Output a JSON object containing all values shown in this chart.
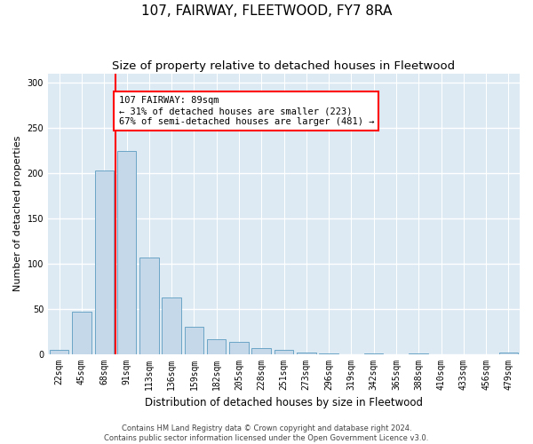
{
  "title": "107, FAIRWAY, FLEETWOOD, FY7 8RA",
  "subtitle": "Size of property relative to detached houses in Fleetwood",
  "xlabel": "Distribution of detached houses by size in Fleetwood",
  "ylabel": "Number of detached properties",
  "bar_labels": [
    "22sqm",
    "45sqm",
    "68sqm",
    "91sqm",
    "113sqm",
    "136sqm",
    "159sqm",
    "182sqm",
    "205sqm",
    "228sqm",
    "251sqm",
    "273sqm",
    "296sqm",
    "319sqm",
    "342sqm",
    "365sqm",
    "388sqm",
    "410sqm",
    "433sqm",
    "456sqm",
    "479sqm"
  ],
  "bar_values": [
    4,
    47,
    203,
    225,
    107,
    62,
    30,
    16,
    13,
    6,
    4,
    2,
    1,
    0,
    1,
    0,
    1,
    0,
    0,
    0,
    2
  ],
  "bar_color": "#c5d8ea",
  "bar_edge_color": "#5a9bbf",
  "vline_bar_index": 2.5,
  "annotation_text": "107 FAIRWAY: 89sqm\n← 31% of detached houses are smaller (223)\n67% of semi-detached houses are larger (481) →",
  "annotation_box_color": "white",
  "annotation_box_edge_color": "red",
  "vline_color": "red",
  "ylim": [
    0,
    310
  ],
  "yticks": [
    0,
    50,
    100,
    150,
    200,
    250,
    300
  ],
  "background_color": "#dde9f3",
  "grid_color": "white",
  "footer_line1": "Contains HM Land Registry data © Crown copyright and database right 2024.",
  "footer_line2": "Contains public sector information licensed under the Open Government Licence v3.0.",
  "title_fontsize": 11,
  "subtitle_fontsize": 9.5,
  "xlabel_fontsize": 8.5,
  "ylabel_fontsize": 8,
  "tick_fontsize": 7,
  "annotation_fontsize": 7.5,
  "footer_fontsize": 6
}
